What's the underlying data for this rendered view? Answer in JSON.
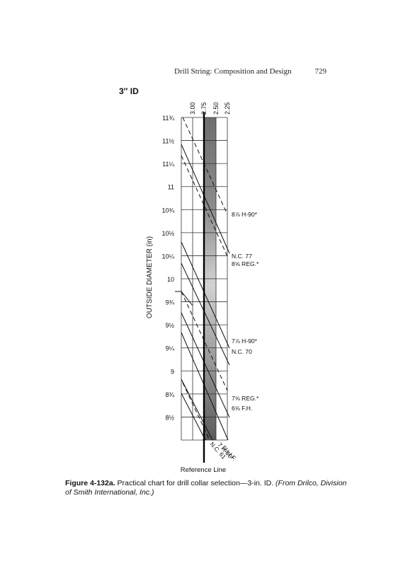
{
  "page": {
    "running_head": "Drill String: Composition and Design",
    "page_number": "729"
  },
  "figure": {
    "caption_label": "Figure 4-132a.",
    "caption_text": "Practical chart for drill collar selection—3-in. ID.",
    "caption_source": "(From Drilco, Division of Smith International, Inc.)"
  },
  "chart_data": {
    "type": "line",
    "title": "3″ ID",
    "ylabel": "OUTSIDE DIAMETER (in)",
    "xlabel": "Reference Line",
    "top_axis_labels": [
      "3.00",
      "2.75",
      "2.50",
      "2.25"
    ],
    "y_tick_labels": [
      "11¾",
      "11½",
      "11¼",
      "11",
      "10¾",
      "10½",
      "10¼",
      "10",
      "9¾",
      "9½",
      "9¼",
      "9",
      "8¾",
      "8½"
    ],
    "ylim": [
      8.5,
      11.75
    ],
    "connection_labels": [
      "8⅞ H-90*",
      "N.C. 77",
      "8⅝ REG.*",
      "7⅞ H-90*",
      "N.C. 70",
      "7⅝ REG.*",
      "6⅝ F.H.",
      "5½ I.F.",
      "7 H-90*",
      "N.C. 61"
    ],
    "shaded_band": "2.50–2.75 (recommended range)"
  }
}
